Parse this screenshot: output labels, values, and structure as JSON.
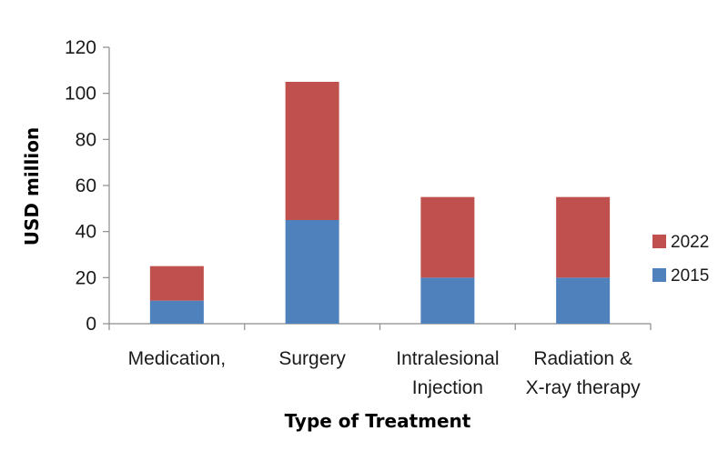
{
  "chart_data": {
    "type": "bar",
    "stacked": true,
    "categories": [
      [
        "Medication,"
      ],
      [
        "Surgery"
      ],
      [
        "Intralesional",
        "Injection"
      ],
      [
        "Radiation &",
        "X-ray therapy"
      ]
    ],
    "series": [
      {
        "name": "2015",
        "color": "#4f81bd",
        "values": [
          10,
          45,
          20,
          20
        ]
      },
      {
        "name": "2022",
        "color": "#c0504d",
        "values": [
          15,
          60,
          35,
          35
        ]
      }
    ],
    "title": "",
    "xlabel": "Type of Treatment",
    "ylabel": "USD million",
    "ylim": [
      0,
      120
    ],
    "yticks": [
      0,
      20,
      40,
      60,
      80,
      100,
      120
    ],
    "grid": false,
    "legend": "right"
  }
}
